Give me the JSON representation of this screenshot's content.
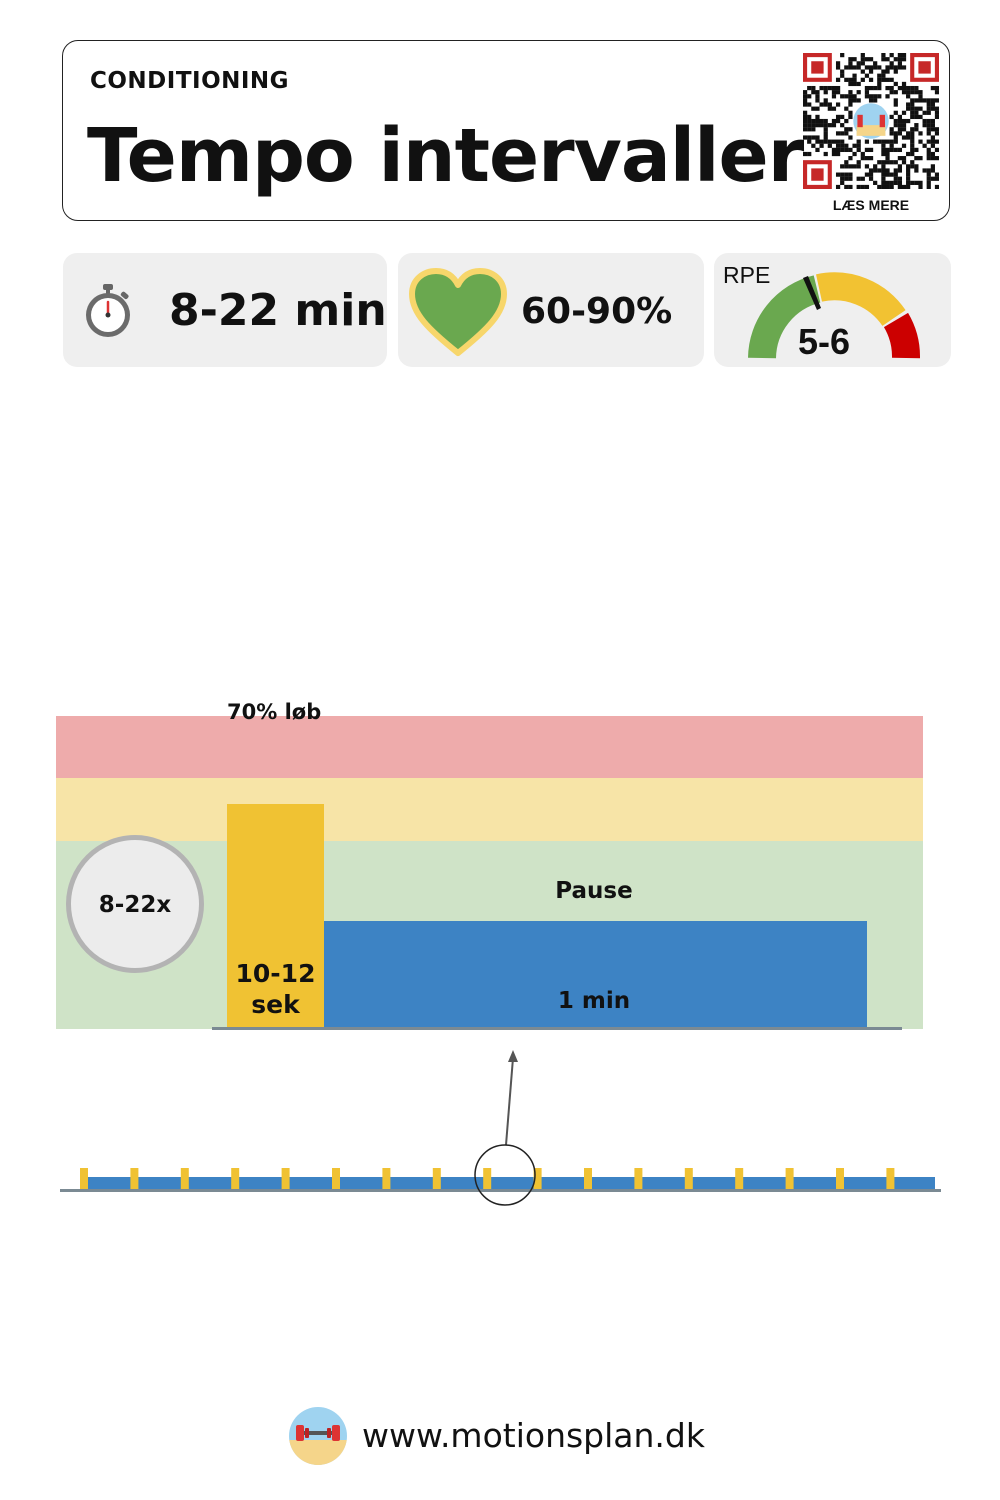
{
  "header": {
    "category": "CONDITIONING",
    "title": "Tempo intervaller",
    "qr_caption": "LÆS MERE"
  },
  "stats": {
    "duration": "8-22 min",
    "heart_rate": "60-90%",
    "rpe_label": "RPE",
    "rpe_value": "5-6"
  },
  "workout": {
    "run_label": "70% løb",
    "repetitions": "8-22x",
    "work_duration": "10-12 sek",
    "pause_label": "Pause",
    "rest_duration": "1 min",
    "interval_count": 17
  },
  "colors": {
    "zone_high": "#eeabab",
    "zone_mid": "#f7e4a7",
    "zone_low": "#cfe3c7",
    "work": "#f0c233",
    "rest": "#3d83c4",
    "heart_fill": "#6aa84f",
    "heart_stroke": "#f7d66b"
  },
  "footer": {
    "url": "www.motionsplan.dk"
  }
}
